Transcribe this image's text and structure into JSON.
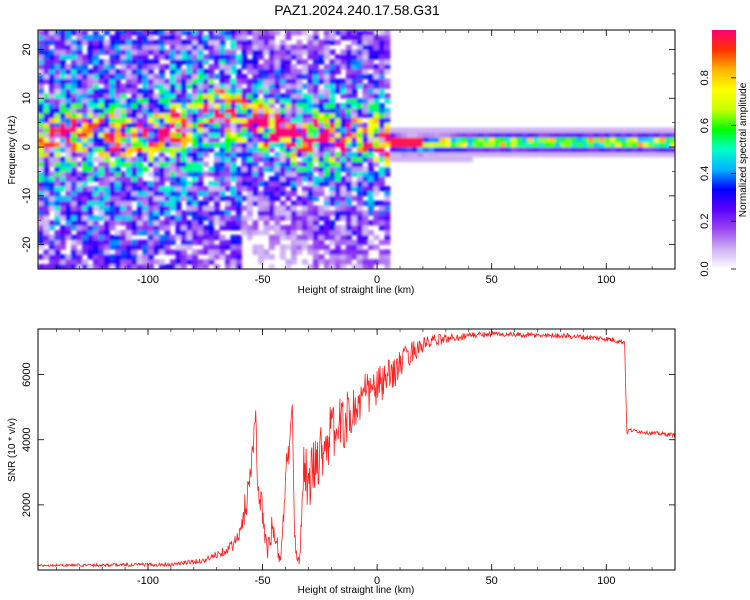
{
  "title": "PAZ1.2024.240.17.58.G31",
  "chart_data": [
    {
      "type": "heatmap",
      "xlabel": "Height of straight line (km)",
      "ylabel": "Frequency (Hz)",
      "xlim": [
        -148,
        130
      ],
      "ylim": [
        -25,
        24
      ],
      "xticks": [
        -100,
        -50,
        0,
        50,
        100
      ],
      "yticks": [
        -20,
        -10,
        0,
        10,
        20
      ],
      "colorbar": {
        "label": "Normalized spectral amplitude",
        "range": [
          0,
          1
        ],
        "ticks": [
          0.0,
          0.2,
          0.4,
          0.6,
          0.8
        ],
        "colors": [
          "#ffffff",
          "#cdb0f2",
          "#9b46f0",
          "#5a00ff",
          "#0000ff",
          "#00b4ff",
          "#00ffc8",
          "#00ff00",
          "#c8ff00",
          "#ffff00",
          "#ffb400",
          "#ff3200",
          "#ff0078"
        ]
      },
      "ridge": {
        "x": [
          -148,
          -130,
          -110,
          -95,
          -85,
          -75,
          -68,
          -62,
          -56,
          -50,
          -44,
          -38,
          -32,
          -28,
          -24,
          -20,
          -14,
          -8,
          -4,
          0,
          5,
          10,
          20,
          40,
          60,
          80,
          100,
          120,
          130
        ],
        "y": [
          2,
          2.5,
          1.5,
          3,
          4,
          7,
          8,
          6,
          5,
          3.5,
          3,
          2,
          1.5,
          2.5,
          1,
          1.5,
          2,
          2.5,
          1.5,
          1,
          0.5,
          0,
          0,
          0.5,
          0.5,
          0.5,
          0.5,
          0.5,
          0.5
        ]
      },
      "strongest_band": {
        "x_range": [
          5,
          130
        ],
        "y": 0.3
      }
    },
    {
      "type": "line",
      "xlabel": "Height of straight line (km)",
      "ylabel": "SNR (10 * v/v)",
      "xlim": [
        -148,
        130
      ],
      "ylim": [
        0,
        7400
      ],
      "xticks": [
        -100,
        -50,
        0,
        50,
        100
      ],
      "yticks": [
        2000,
        4000,
        6000
      ],
      "series": [
        {
          "color": "#ff2020",
          "x": [
            -148,
            -130,
            -110,
            -90,
            -75,
            -65,
            -60,
            -56,
            -54,
            -53,
            -52,
            -51,
            -50,
            -48,
            -46,
            -44,
            -42,
            -40,
            -38,
            -37,
            -36,
            -35,
            -34,
            -33,
            -32,
            -30,
            -28,
            -25,
            -20,
            -15,
            -10,
            -5,
            0,
            5,
            10,
            15,
            20,
            25,
            30,
            35,
            40,
            50,
            60,
            70,
            80,
            90,
            100,
            108,
            109,
            110,
            120,
            130
          ],
          "y": [
            140,
            150,
            160,
            170,
            300,
            650,
            1000,
            2600,
            4000,
            4900,
            2000,
            2200,
            1800,
            500,
            1200,
            800,
            300,
            2800,
            4000,
            5000,
            900,
            500,
            200,
            1500,
            3500,
            2500,
            3100,
            3600,
            4200,
            4500,
            4900,
            5400,
            5600,
            5900,
            6300,
            6700,
            6900,
            7050,
            7100,
            7150,
            7200,
            7250,
            7220,
            7200,
            7200,
            7150,
            7100,
            7000,
            4200,
            4300,
            4200,
            4150
          ],
          "noise": [
            30,
            40,
            50,
            60,
            80,
            150,
            300,
            600,
            400,
            100,
            500,
            600,
            400,
            300,
            500,
            400,
            200,
            600,
            500,
            100,
            300,
            200,
            150,
            500,
            700,
            800,
            900,
            900,
            900,
            850,
            800,
            700,
            650,
            550,
            450,
            350,
            250,
            180,
            150,
            120,
            100,
            80,
            80,
            80,
            80,
            80,
            80,
            80,
            60,
            60,
            60,
            60
          ]
        }
      ]
    }
  ]
}
